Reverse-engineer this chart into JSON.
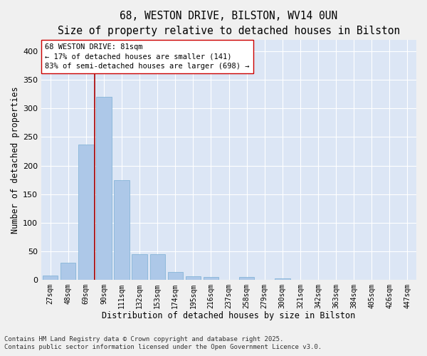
{
  "title_line1": "68, WESTON DRIVE, BILSTON, WV14 0UN",
  "title_line2": "Size of property relative to detached houses in Bilston",
  "xlabel": "Distribution of detached houses by size in Bilston",
  "ylabel": "Number of detached properties",
  "categories": [
    "27sqm",
    "48sqm",
    "69sqm",
    "90sqm",
    "111sqm",
    "132sqm",
    "153sqm",
    "174sqm",
    "195sqm",
    "216sqm",
    "237sqm",
    "258sqm",
    "279sqm",
    "300sqm",
    "321sqm",
    "342sqm",
    "363sqm",
    "384sqm",
    "405sqm",
    "426sqm",
    "447sqm"
  ],
  "values": [
    7,
    30,
    237,
    320,
    175,
    45,
    45,
    14,
    6,
    5,
    0,
    5,
    0,
    2,
    0,
    0,
    0,
    0,
    0,
    0,
    0
  ],
  "bar_color": "#adc8e8",
  "bar_edge_color": "#7aafd4",
  "vline_x_index": 2.5,
  "vline_color": "#aa0000",
  "annotation_text": "68 WESTON DRIVE: 81sqm\n← 17% of detached houses are smaller (141)\n83% of semi-detached houses are larger (698) →",
  "annotation_box_color": "#ffffff",
  "annotation_edge_color": "#cc0000",
  "ylim": [
    0,
    420
  ],
  "yticks": [
    0,
    50,
    100,
    150,
    200,
    250,
    300,
    350,
    400
  ],
  "plot_bg_color": "#dce6f5",
  "fig_bg_color": "#f0f0f0",
  "grid_color": "#ffffff",
  "footer_line1": "Contains HM Land Registry data © Crown copyright and database right 2025.",
  "footer_line2": "Contains public sector information licensed under the Open Government Licence v3.0.",
  "title_fontsize": 10.5,
  "subtitle_fontsize": 9.5,
  "annotation_fontsize": 7.5,
  "tick_fontsize": 7,
  "label_fontsize": 8.5,
  "footer_fontsize": 6.5
}
